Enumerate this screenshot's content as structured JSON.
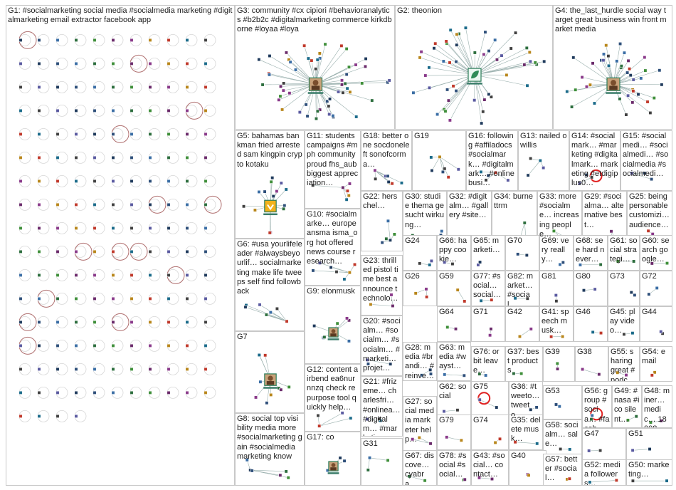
{
  "graph": {
    "background": "#ffffff",
    "border_color": "#c8c8c8",
    "edge_color": "#9ab0ae",
    "self_loop_color": "#b07070",
    "highlight_loop_color": "#e02020",
    "node_colors": [
      "#1f3a5c",
      "#2e4f7a",
      "#3b6ea5",
      "#2d6e3e",
      "#3f8f3a",
      "#6b2b6b",
      "#8a3a8a",
      "#b8861b",
      "#c0392b",
      "#1b6b8a",
      "#404040",
      "#5a5aa0"
    ],
    "groups": [
      {
        "id": "G1",
        "label": "G1: #socialmarketing social media #socialmedia marketing #digitalmarketing email extractor facebook app",
        "layout": "grid",
        "nodes": 180,
        "self_loops": 14
      },
      {
        "id": "G3",
        "label": "G3: community #cx cipiori #behavioranalytics #b2b2c #digitalmarketing commerce kirkdborne #loyaa #loya",
        "layout": "star",
        "nodes": 55,
        "center_icon": "avatar-photo-icon"
      },
      {
        "id": "G2",
        "label": "G2: theonion",
        "layout": "star",
        "nodes": 50,
        "center_icon": "leaf-logo-icon"
      },
      {
        "id": "G4",
        "label": "G4: the_last_hurdle social way target great business win front market media",
        "layout": "star",
        "nodes": 40,
        "center_icon": "avatar-photo-icon"
      },
      {
        "id": "G5",
        "label": "G5: bahamas bankman fried arrested sam kingpin crypto kotaku",
        "layout": "star",
        "nodes": 14,
        "center_icon": "yellow-logo-icon"
      },
      {
        "id": "G11",
        "label": "G11: students campaigns #mph community proud fhs_aub biggest appreciation…",
        "layout": "cluster",
        "nodes": 6
      },
      {
        "id": "G18",
        "label": "G18: better one socdoneleft sonofcorma…",
        "layout": "cluster",
        "nodes": 8
      },
      {
        "id": "G19",
        "label": "G19",
        "layout": "cluster",
        "nodes": 7
      },
      {
        "id": "G16",
        "label": "G16: following #affiladocs #socialmark… #digitalmark… #onlinebusi…",
        "layout": "cluster",
        "nodes": 5
      },
      {
        "id": "G13",
        "label": "G13: nailed owillis",
        "layout": "cluster",
        "nodes": 4
      },
      {
        "id": "G14",
        "label": "G14: #socialmark… #marketing #digitalmark… marketing #etdigiplus0…",
        "layout": "cluster",
        "nodes": 3,
        "highlight_loop": true
      },
      {
        "id": "G15",
        "label": "G15: #socialmedi… #socialmedi… #socialmedia #socialmedi…",
        "layout": "cluster",
        "nodes": 3
      },
      {
        "id": "G22",
        "label": "G22: herschel…",
        "layout": "cluster",
        "nodes": 5
      },
      {
        "id": "G30",
        "label": "G30: studie thema gesucht wirkung…",
        "layout": "cluster",
        "nodes": 3
      },
      {
        "id": "G32",
        "label": "G32: #digitalm… #gallery #site…",
        "layout": "cluster",
        "nodes": 3
      },
      {
        "id": "G34",
        "label": "G34: burnettrm",
        "layout": "cluster",
        "nodes": 3
      },
      {
        "id": "G33",
        "label": "G33: more #socialme… increasing people…",
        "layout": "cluster",
        "nodes": 3
      },
      {
        "id": "G29",
        "label": "G29: #socialma… alternative best…",
        "layout": "cluster",
        "nodes": 3
      },
      {
        "id": "G25",
        "label": "G25: being personable customizi… audience…",
        "layout": "cluster",
        "nodes": 3
      },
      {
        "id": "G10",
        "label": "G10: #socialmarke… europeansma isma_org hot offered news course research…",
        "layout": "cluster",
        "nodes": 7
      },
      {
        "id": "G6",
        "label": "G6: #usa yourlifeleader #alwaysbeyourlif… socialmarketing make life tweeps self find followback",
        "layout": "cluster",
        "nodes": 8
      },
      {
        "id": "G24",
        "label": "G24",
        "layout": "cluster",
        "nodes": 3
      },
      {
        "id": "G66",
        "label": "G66: happy cookie…",
        "layout": "cluster",
        "nodes": 2
      },
      {
        "id": "G65",
        "label": "G65: marketi…",
        "layout": "cluster",
        "nodes": 2
      },
      {
        "id": "G70",
        "label": "G70",
        "layout": "cluster",
        "nodes": 2
      },
      {
        "id": "G69",
        "label": "G69: very really…",
        "layout": "cluster",
        "nodes": 2
      },
      {
        "id": "G68",
        "label": "G68: see hard never…",
        "layout": "cluster",
        "nodes": 2
      },
      {
        "id": "G61",
        "label": "G61: social strategi…",
        "layout": "cluster",
        "nodes": 2
      },
      {
        "id": "G60",
        "label": "G60: search google…",
        "layout": "cluster",
        "nodes": 2
      },
      {
        "id": "G23",
        "label": "G23: thrilled pistol time best announce technolo…",
        "layout": "cluster",
        "nodes": 3
      },
      {
        "id": "G26",
        "label": "G26",
        "layout": "cluster",
        "nodes": 3
      },
      {
        "id": "G59",
        "label": "G59",
        "layout": "cluster",
        "nodes": 2
      },
      {
        "id": "G77",
        "label": "G77: #social… social…",
        "layout": "cluster",
        "nodes": 2
      },
      {
        "id": "G82",
        "label": "G82: market… #social…",
        "layout": "cluster",
        "nodes": 2
      },
      {
        "id": "G81",
        "label": "G81",
        "layout": "cluster",
        "nodes": 2
      },
      {
        "id": "G80",
        "label": "G80",
        "layout": "cluster",
        "nodes": 2
      },
      {
        "id": "G73",
        "label": "G73",
        "layout": "cluster",
        "nodes": 2
      },
      {
        "id": "G72",
        "label": "G72",
        "layout": "cluster",
        "nodes": 2
      },
      {
        "id": "G9",
        "label": "G9: elonmusk",
        "layout": "star",
        "nodes": 7,
        "center_icon": "avatar-photo-icon"
      },
      {
        "id": "G7",
        "label": "G7",
        "layout": "star",
        "nodes": 10,
        "center_icon": "avatar-photo-icon"
      },
      {
        "id": "G64",
        "label": "G64",
        "layout": "cluster",
        "nodes": 2
      },
      {
        "id": "G71",
        "label": "G71",
        "layout": "cluster",
        "nodes": 2
      },
      {
        "id": "G42",
        "label": "G42",
        "layout": "cluster",
        "nodes": 2
      },
      {
        "id": "G41",
        "label": "G41: speech musk…",
        "layout": "cluster",
        "nodes": 2
      },
      {
        "id": "G46",
        "label": "G46",
        "layout": "cluster",
        "nodes": 2
      },
      {
        "id": "G45",
        "label": "G45: play video…",
        "layout": "cluster",
        "nodes": 2
      },
      {
        "id": "G44",
        "label": "G44",
        "layout": "cluster",
        "nodes": 2
      },
      {
        "id": "G20",
        "label": "G20: #socialm… #socialm… #socialm… #marketi… projet…",
        "layout": "cluster",
        "nodes": 3
      },
      {
        "id": "G28",
        "label": "G28: media #brandi… #reinve… accoun…",
        "layout": "cluster",
        "nodes": 3
      },
      {
        "id": "G63",
        "label": "G63: media #wayst…",
        "layout": "cluster",
        "nodes": 2
      },
      {
        "id": "G76",
        "label": "G76: orbit leave…",
        "layout": "cluster",
        "nodes": 2
      },
      {
        "id": "G37",
        "label": "G37: best products",
        "layout": "cluster",
        "nodes": 2
      },
      {
        "id": "G39",
        "label": "G39",
        "layout": "cluster",
        "nodes": 2
      },
      {
        "id": "G38",
        "label": "G38",
        "layout": "cluster",
        "nodes": 2
      },
      {
        "id": "G55",
        "label": "G55: sharing great #podc…",
        "layout": "cluster",
        "nodes": 2
      },
      {
        "id": "G54",
        "label": "G54: email",
        "layout": "cluster",
        "nodes": 2
      },
      {
        "id": "G12",
        "label": "G12: content airbend ea6nurnnzq check repurpose tool quickly help…",
        "layout": "cluster",
        "nodes": 4
      },
      {
        "id": "G21",
        "label": "G21: #frizeme… charlesfri… #onlinea… #digitalm… #marketi…",
        "layout": "cluster",
        "nodes": 3
      },
      {
        "id": "G62",
        "label": "G62: social",
        "layout": "cluster",
        "nodes": 2
      },
      {
        "id": "G75",
        "label": "G75",
        "layout": "cluster",
        "nodes": 2,
        "highlight_loop": true
      },
      {
        "id": "G36",
        "label": "G36: #tweeto… tweeto…",
        "layout": "cluster",
        "nodes": 2
      },
      {
        "id": "G53",
        "label": "G53",
        "layout": "cluster",
        "nodes": 2
      },
      {
        "id": "G56",
        "label": "G56: group #socia… #faceb…",
        "layout": "cluster",
        "nodes": 2,
        "highlight_loop": true
      },
      {
        "id": "G49",
        "label": "G49: #nasa #ico silent…",
        "layout": "cluster",
        "nodes": 2
      },
      {
        "id": "G48",
        "label": "G48: miner… medic… 18008…",
        "layout": "cluster",
        "nodes": 2
      },
      {
        "id": "G27",
        "label": "G27: social media marketer help…",
        "layout": "cluster",
        "nodes": 3
      },
      {
        "id": "G79",
        "label": "G79",
        "layout": "cluster",
        "nodes": 2
      },
      {
        "id": "G74",
        "label": "G74",
        "layout": "cluster",
        "nodes": 2
      },
      {
        "id": "G35",
        "label": "G35: delete musk…",
        "layout": "cluster",
        "nodes": 2
      },
      {
        "id": "G58",
        "label": "G58: socialm… sale…",
        "layout": "cluster",
        "nodes": 2
      },
      {
        "id": "G47",
        "label": "G47",
        "layout": "cluster",
        "nodes": 2
      },
      {
        "id": "G51",
        "label": "G51",
        "layout": "cluster",
        "nodes": 2
      },
      {
        "id": "G8",
        "label": "G8: social top visibility media more #socialmarketing gain #socialmedia marketing know",
        "layout": "cluster",
        "nodes": 6
      },
      {
        "id": "G17",
        "label": "G17: co",
        "layout": "star",
        "nodes": 3,
        "center_icon": "avatar-photo-icon"
      },
      {
        "id": "G31",
        "label": "G31",
        "layout": "cluster",
        "nodes": 3
      },
      {
        "id": "G67",
        "label": "G67: discove… cyabra…",
        "layout": "cluster",
        "nodes": 2
      },
      {
        "id": "G78",
        "label": "G78: #social #social…",
        "layout": "cluster",
        "nodes": 2
      },
      {
        "id": "G43",
        "label": "G43: #social… contact…",
        "layout": "cluster",
        "nodes": 2
      },
      {
        "id": "G40",
        "label": "G40",
        "layout": "cluster",
        "nodes": 2
      },
      {
        "id": "G57",
        "label": "G57: better #social…",
        "layout": "cluster",
        "nodes": 2
      },
      {
        "id": "G52",
        "label": "G52: media followers…",
        "layout": "cluster",
        "nodes": 2
      },
      {
        "id": "G50",
        "label": "G50: marketing…",
        "layout": "cluster",
        "nodes": 2
      }
    ]
  }
}
